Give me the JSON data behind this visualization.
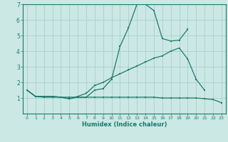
{
  "xlabel": "Humidex (Indice chaleur)",
  "x": [
    0,
    1,
    2,
    3,
    4,
    5,
    6,
    7,
    8,
    9,
    10,
    11,
    12,
    13,
    14,
    15,
    16,
    17,
    18,
    19,
    20,
    21,
    22,
    23
  ],
  "line1": [
    1.5,
    1.1,
    1.1,
    1.1,
    1.05,
    0.95,
    1.05,
    1.05,
    1.5,
    1.6,
    2.2,
    4.3,
    5.5,
    7.0,
    7.0,
    6.6,
    4.8,
    4.65,
    4.7,
    5.4,
    null,
    null,
    null,
    null
  ],
  "line2": [
    1.5,
    1.1,
    1.1,
    1.1,
    1.05,
    0.95,
    1.1,
    1.3,
    1.8,
    2.0,
    2.3,
    2.55,
    2.8,
    3.05,
    3.3,
    3.55,
    3.7,
    4.0,
    4.2,
    3.5,
    2.2,
    1.5,
    null,
    null
  ],
  "line3": [
    1.5,
    1.1,
    1.05,
    1.05,
    1.05,
    1.05,
    1.05,
    1.05,
    1.05,
    1.05,
    1.05,
    1.05,
    1.05,
    1.05,
    1.05,
    1.05,
    1.0,
    1.0,
    1.0,
    1.0,
    1.0,
    0.95,
    0.9,
    0.7
  ],
  "line_color": "#1a7a6e",
  "bg_color": "#cce8e4",
  "grid_color": "#aacfca",
  "ylim": [
    0,
    7
  ],
  "xlim": [
    -0.5,
    23.5
  ],
  "yticks": [
    1,
    2,
    3,
    4,
    5,
    6,
    7
  ],
  "xticks": [
    0,
    1,
    2,
    3,
    4,
    5,
    6,
    7,
    8,
    9,
    10,
    11,
    12,
    13,
    14,
    15,
    16,
    17,
    18,
    19,
    20,
    21,
    22,
    23
  ]
}
